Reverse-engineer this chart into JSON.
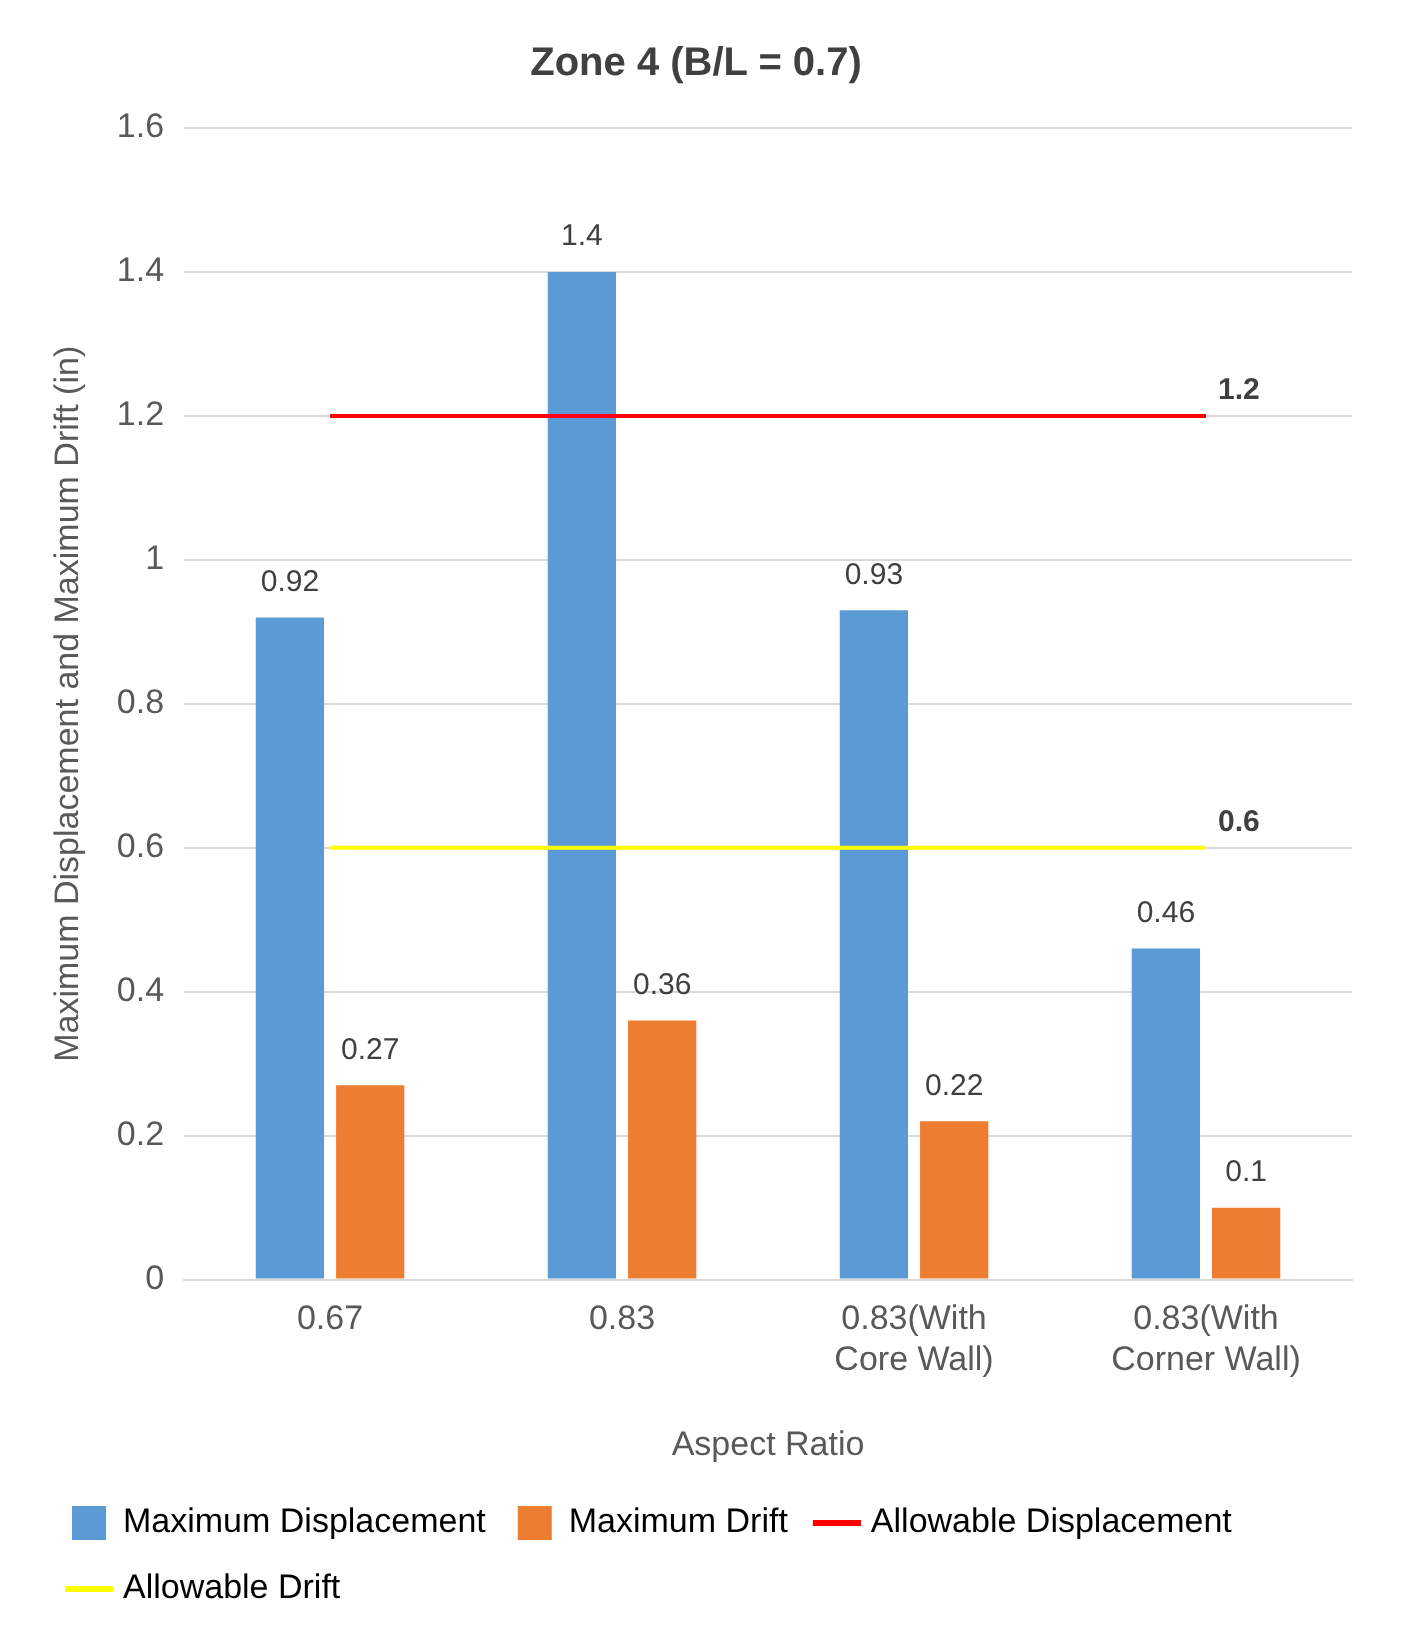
{
  "chart_data": {
    "type": "bar",
    "title": "Zone 4 (B/L = 0.7)",
    "xlabel": "Aspect Ratio",
    "ylabel": "Maximum Displacement and Maximum Drift (in)",
    "categories": [
      "0.67",
      "0.83",
      "0.83(With Core Wall)",
      "0.83(With Corner Wall)"
    ],
    "series": [
      {
        "name": "Maximum Displacement",
        "color": "#5b9bd5",
        "values": [
          0.92,
          1.4,
          0.93,
          0.46
        ],
        "value_labels": [
          "0.92",
          "1.4",
          "0.93",
          "0.46"
        ]
      },
      {
        "name": "Maximum Drift",
        "color": "#ed7d31",
        "values": [
          0.27,
          0.36,
          0.22,
          0.1
        ],
        "value_labels": [
          "0.27",
          "0.36",
          "0.22",
          "0.1"
        ]
      },
      {
        "name": "Allowable Displacement",
        "type": "line",
        "color": "#ff0000",
        "values": [
          1.2,
          1.2,
          1.2,
          1.2
        ],
        "value_labels": [
          null,
          null,
          null,
          "1.2"
        ]
      },
      {
        "name": "Allowable Drift",
        "type": "line",
        "color": "#ffff00",
        "values": [
          0.6,
          0.6,
          0.6,
          0.6
        ],
        "value_labels": [
          null,
          null,
          null,
          "0.6"
        ]
      }
    ],
    "ylim": [
      0,
      1.6
    ],
    "yticks": [
      0,
      0.2,
      0.4,
      0.6,
      0.8,
      1,
      1.2,
      1.4,
      1.6
    ],
    "grid": "y",
    "legend": "bottom"
  }
}
